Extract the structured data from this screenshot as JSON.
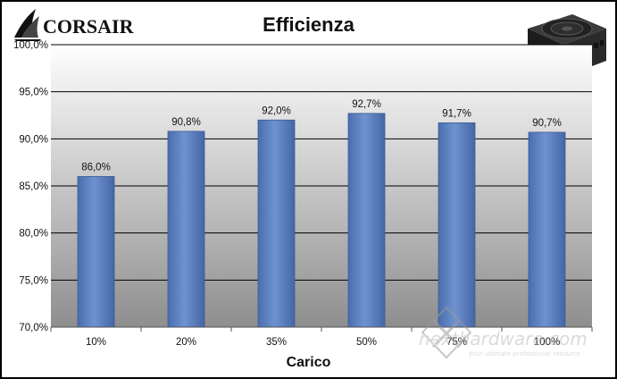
{
  "brand": {
    "name": "CORSAIR"
  },
  "chart_data": {
    "type": "bar",
    "title": "Efficienza",
    "xlabel": "Carico",
    "ylabel": "",
    "categories": [
      "10%",
      "20%",
      "35%",
      "50%",
      "75%",
      "100%"
    ],
    "values": [
      86.0,
      90.8,
      92.0,
      92.7,
      91.7,
      90.7
    ],
    "value_labels": [
      "86,0%",
      "90,8%",
      "92,0%",
      "92,7%",
      "91,7%",
      "90,7%"
    ],
    "ylim": [
      70,
      100
    ],
    "yticks": [
      70,
      75,
      80,
      85,
      90,
      95,
      100
    ],
    "ytick_labels": [
      "70,0%",
      "75,0%",
      "80,0%",
      "85,0%",
      "90,0%",
      "95,0%",
      "100,0%"
    ],
    "grid": true,
    "bar_color": "#5a7fbf"
  },
  "watermark": {
    "text": "nexthardware.com",
    "tagline": "your ultimate professional resource"
  },
  "icons": {
    "logo": "corsair-sails-logo",
    "product": "psu-image"
  }
}
